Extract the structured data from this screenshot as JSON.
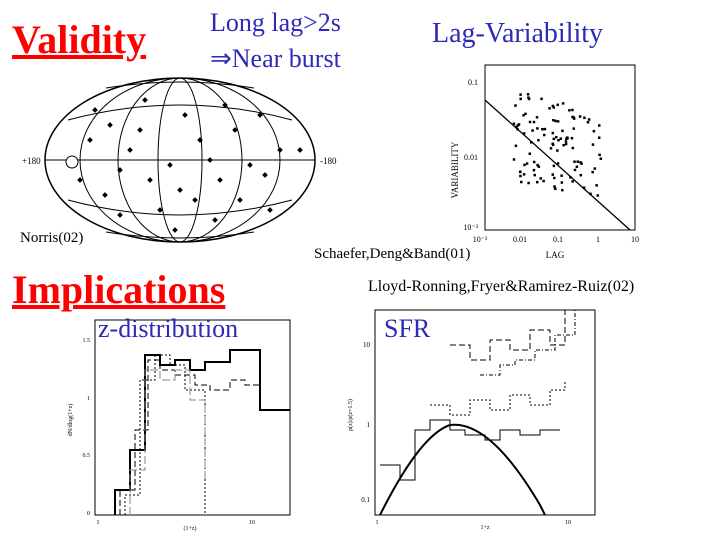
{
  "headings": {
    "validity": "Validity",
    "implications": "Implications"
  },
  "notes": {
    "long_lag": "Long lag>2s",
    "near_burst": "⇒Near burst"
  },
  "panels": {
    "lag_variability": {
      "title": "Lag-Variability",
      "ylabel": "VARIABILITY",
      "xlabel": "LAG",
      "yticks": [
        "0.1",
        "0.01",
        "10⁻³"
      ],
      "xticks": [
        "10⁻³",
        "0.01",
        "0.1",
        "1",
        "10"
      ]
    },
    "sky_map": {
      "left_label": "+180",
      "right_label": "-180"
    },
    "z_distribution": {
      "title": "z-distribution",
      "ylabel": "dN/dlog(1+z)",
      "xlabel": "(1+z)",
      "yticks": [
        "1.5",
        "1",
        "0.5",
        "0"
      ],
      "xticks": [
        "1",
        "10"
      ]
    },
    "sfr": {
      "title": "SFR",
      "ylabel": "ρ(z)/ρ(z=1.5)",
      "xlabel": "1+z",
      "yticks": [
        "10",
        "1",
        "0.1"
      ],
      "xticks": [
        "1",
        "10"
      ]
    }
  },
  "citations": {
    "norris": "Norris(02)",
    "schaefer": "Schaefer,Deng&Band(01)",
    "lloyd": "Lloyd-Ronning,Fryer&Ramirez-Ruiz(02)"
  }
}
